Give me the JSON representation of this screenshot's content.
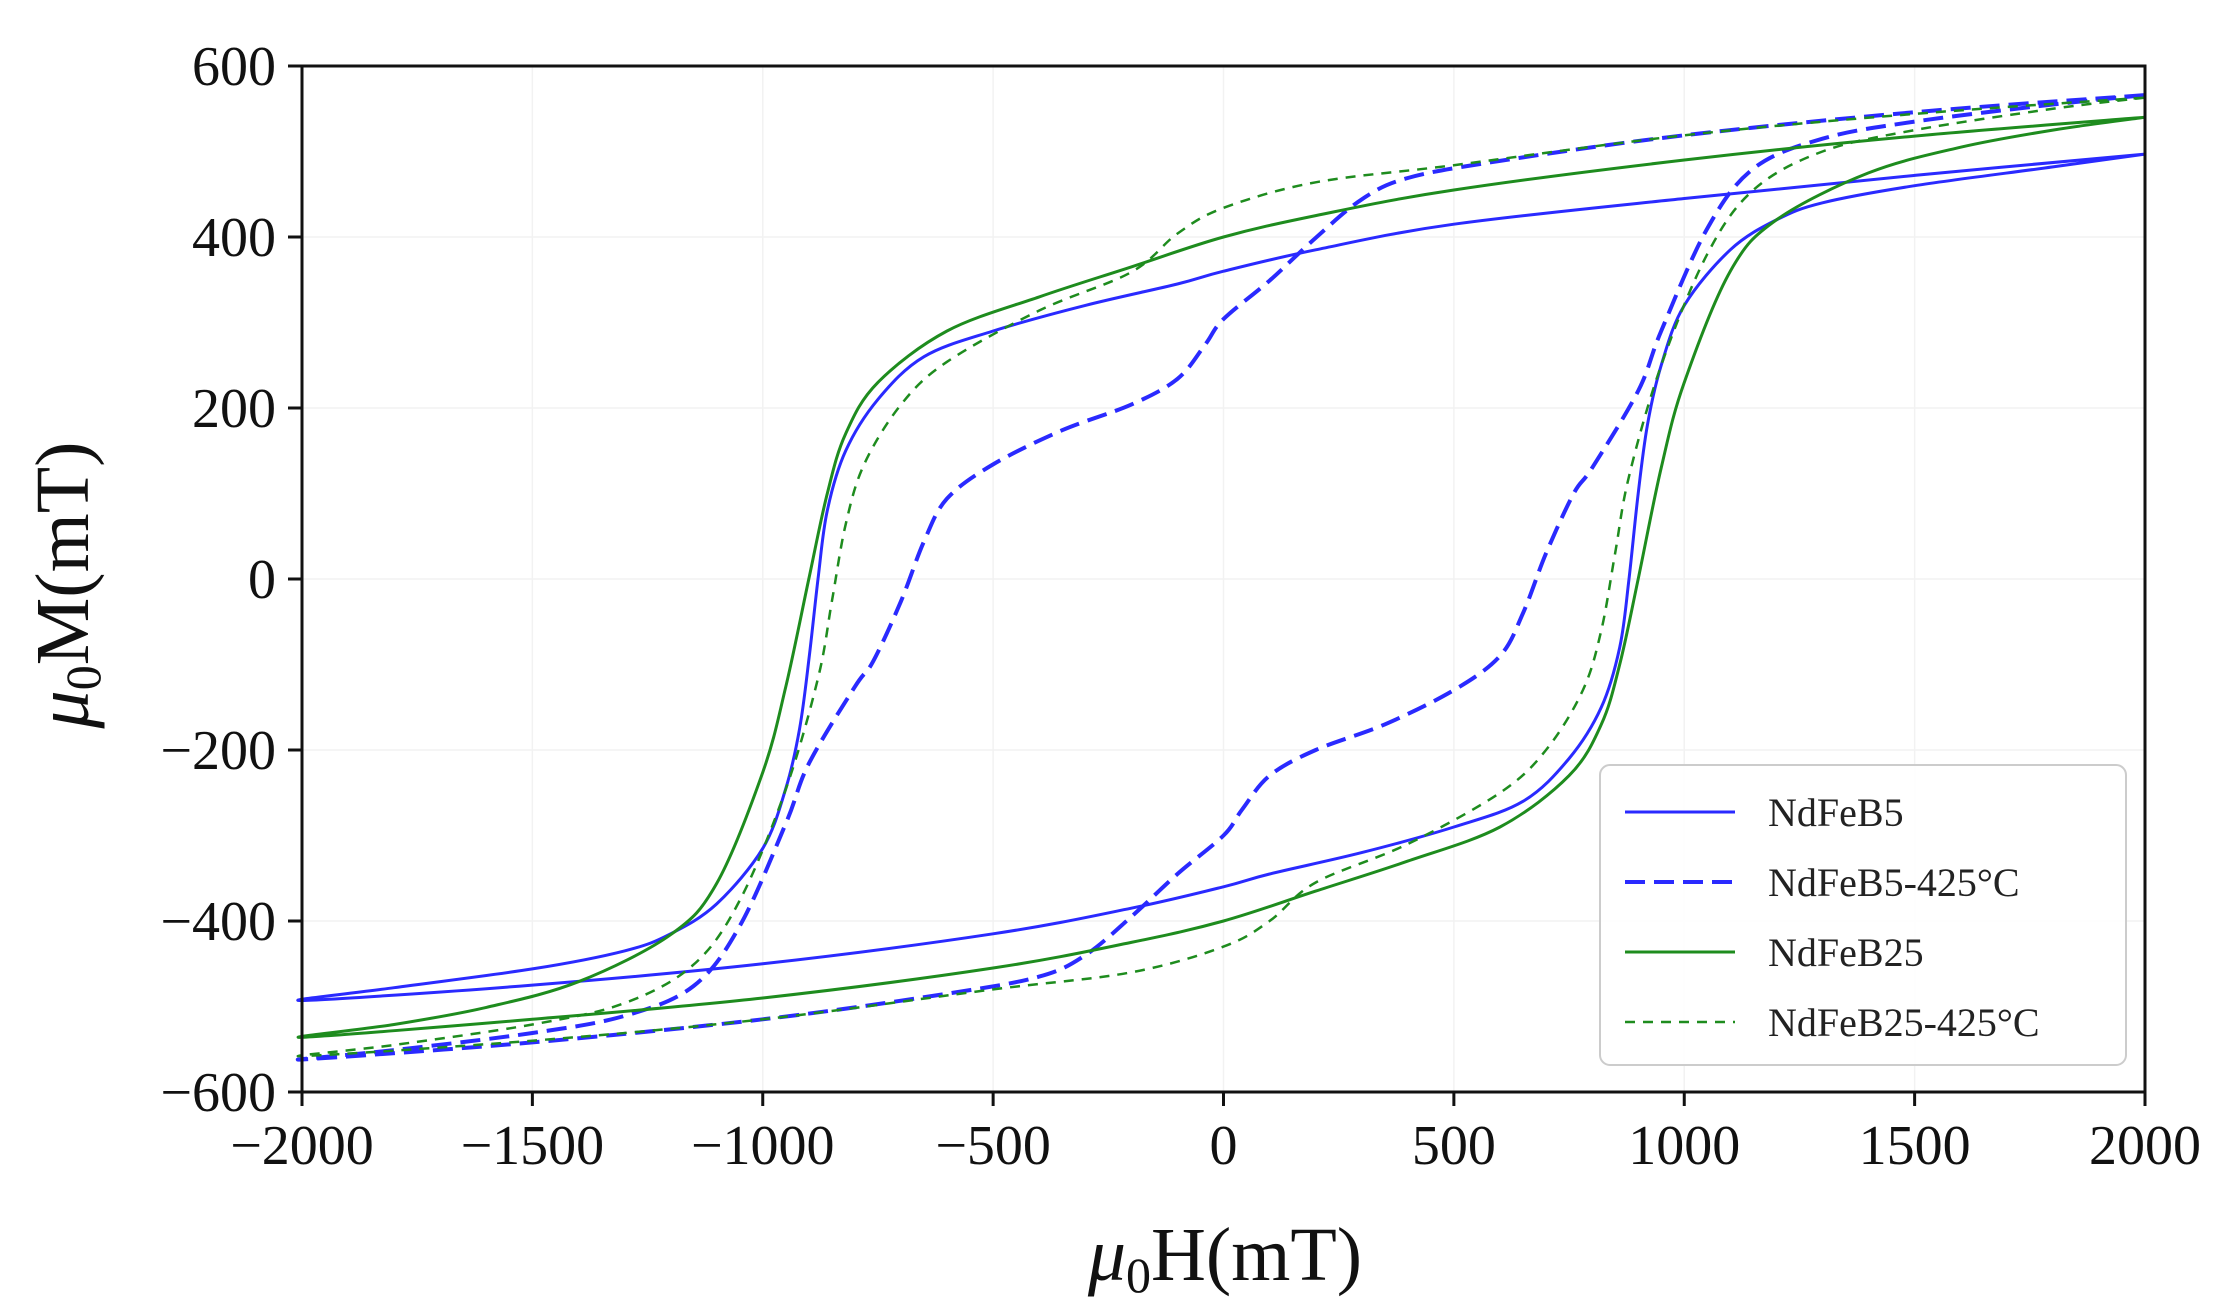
{
  "chart_data": {
    "type": "line",
    "title": "",
    "xlabel": "μ0H(mT)",
    "ylabel": "μ0M(mT)",
    "xlim": [
      -2000,
      2000
    ],
    "ylim": [
      -600,
      600
    ],
    "xticks": [
      -2000,
      -1500,
      -1000,
      -500,
      0,
      500,
      1000,
      1500,
      2000
    ],
    "yticks": [
      -600,
      -400,
      -200,
      0,
      200,
      400,
      600
    ],
    "xtick_labels": [
      "−2000",
      "−1500",
      "−1000",
      "−500",
      "0",
      "500",
      "1000",
      "1500",
      "2000"
    ],
    "ytick_labels": [
      "−600",
      "−400",
      "−200",
      "0",
      "200",
      "400",
      "600"
    ],
    "grid": true,
    "legend_position": "lower-right",
    "series": [
      {
        "name": "NdFeB5",
        "color": "#2a2aff",
        "style": "solid",
        "points": [
          [
            2000,
            497
          ],
          [
            1800,
            482
          ],
          [
            1500,
            460
          ],
          [
            1300,
            440
          ],
          [
            1200,
            420
          ],
          [
            1100,
            385
          ],
          [
            1000,
            320
          ],
          [
            950,
            250
          ],
          [
            920,
            180
          ],
          [
            900,
            100
          ],
          [
            880,
            0
          ],
          [
            860,
            -80
          ],
          [
            820,
            -150
          ],
          [
            750,
            -210
          ],
          [
            650,
            -260
          ],
          [
            500,
            -290
          ],
          [
            300,
            -320
          ],
          [
            100,
            -345
          ],
          [
            0,
            -360
          ],
          [
            -200,
            -385
          ],
          [
            -500,
            -415
          ],
          [
            -1000,
            -450
          ],
          [
            -1500,
            -475
          ],
          [
            -2000,
            -493
          ],
          [
            -1800,
            -478
          ],
          [
            -1500,
            -456
          ],
          [
            -1300,
            -435
          ],
          [
            -1200,
            -415
          ],
          [
            -1100,
            -380
          ],
          [
            -1000,
            -315
          ],
          [
            -950,
            -245
          ],
          [
            -920,
            -175
          ],
          [
            -900,
            -95
          ],
          [
            -880,
            0
          ],
          [
            -860,
            80
          ],
          [
            -820,
            150
          ],
          [
            -750,
            210
          ],
          [
            -650,
            260
          ],
          [
            -500,
            290
          ],
          [
            -300,
            320
          ],
          [
            -100,
            345
          ],
          [
            0,
            360
          ],
          [
            200,
            385
          ],
          [
            500,
            415
          ],
          [
            1000,
            445
          ],
          [
            1500,
            472
          ],
          [
            2000,
            497
          ]
        ]
      },
      {
        "name": "NdFeB5-425°C",
        "color": "#2a2aff",
        "style": "dashed",
        "points": [
          [
            2000,
            566
          ],
          [
            1800,
            555
          ],
          [
            1500,
            535
          ],
          [
            1300,
            515
          ],
          [
            1150,
            480
          ],
          [
            1050,
            410
          ],
          [
            950,
            290
          ],
          [
            900,
            220
          ],
          [
            800,
            130
          ],
          [
            760,
            100
          ],
          [
            700,
            30
          ],
          [
            650,
            -40
          ],
          [
            600,
            -90
          ],
          [
            500,
            -130
          ],
          [
            350,
            -170
          ],
          [
            200,
            -200
          ],
          [
            100,
            -230
          ],
          [
            40,
            -270
          ],
          [
            0,
            -300
          ],
          [
            -100,
            -345
          ],
          [
            -200,
            -395
          ],
          [
            -300,
            -440
          ],
          [
            -400,
            -465
          ],
          [
            -600,
            -485
          ],
          [
            -1000,
            -515
          ],
          [
            -1500,
            -542
          ],
          [
            -2000,
            -562
          ],
          [
            -1800,
            -551
          ],
          [
            -1500,
            -531
          ],
          [
            -1300,
            -511
          ],
          [
            -1150,
            -476
          ],
          [
            -1050,
            -406
          ],
          [
            -950,
            -286
          ],
          [
            -900,
            -216
          ],
          [
            -800,
            -126
          ],
          [
            -760,
            -96
          ],
          [
            -700,
            -26
          ],
          [
            -650,
            44
          ],
          [
            -600,
            94
          ],
          [
            -500,
            134
          ],
          [
            -350,
            174
          ],
          [
            -200,
            204
          ],
          [
            -100,
            234
          ],
          [
            -40,
            274
          ],
          [
            0,
            304
          ],
          [
            100,
            349
          ],
          [
            200,
            399
          ],
          [
            300,
            444
          ],
          [
            400,
            469
          ],
          [
            600,
            489
          ],
          [
            1000,
            519
          ],
          [
            1500,
            546
          ],
          [
            2000,
            566
          ]
        ]
      },
      {
        "name": "NdFeB25",
        "color": "#1e8c1e",
        "style": "solid",
        "points": [
          [
            2000,
            540
          ],
          [
            1800,
            525
          ],
          [
            1600,
            505
          ],
          [
            1400,
            475
          ],
          [
            1200,
            420
          ],
          [
            1100,
            360
          ],
          [
            1000,
            230
          ],
          [
            950,
            130
          ],
          [
            900,
            0
          ],
          [
            860,
            -100
          ],
          [
            820,
            -170
          ],
          [
            750,
            -230
          ],
          [
            600,
            -290
          ],
          [
            400,
            -330
          ],
          [
            200,
            -365
          ],
          [
            0,
            -400
          ],
          [
            -200,
            -425
          ],
          [
            -500,
            -455
          ],
          [
            -1000,
            -490
          ],
          [
            -1500,
            -515
          ],
          [
            -2000,
            -536
          ],
          [
            -1800,
            -521
          ],
          [
            -1600,
            -501
          ],
          [
            -1400,
            -471
          ],
          [
            -1200,
            -416
          ],
          [
            -1100,
            -356
          ],
          [
            -1000,
            -226
          ],
          [
            -950,
            -126
          ],
          [
            -900,
            0
          ],
          [
            -860,
            100
          ],
          [
            -820,
            170
          ],
          [
            -750,
            230
          ],
          [
            -600,
            290
          ],
          [
            -400,
            330
          ],
          [
            -200,
            365
          ],
          [
            0,
            400
          ],
          [
            200,
            425
          ],
          [
            500,
            455
          ],
          [
            1000,
            490
          ],
          [
            1500,
            518
          ],
          [
            2000,
            540
          ]
        ]
      },
      {
        "name": "NdFeB25-425°C",
        "color": "#1e8c1e",
        "style": "dotted",
        "points": [
          [
            2000,
            563
          ],
          [
            1800,
            550
          ],
          [
            1500,
            525
          ],
          [
            1300,
            500
          ],
          [
            1150,
            455
          ],
          [
            1050,
            380
          ],
          [
            950,
            250
          ],
          [
            880,
            120
          ],
          [
            850,
            30
          ],
          [
            820,
            -60
          ],
          [
            780,
            -130
          ],
          [
            700,
            -200
          ],
          [
            600,
            -250
          ],
          [
            400,
            -310
          ],
          [
            200,
            -355
          ],
          [
            100,
            -400
          ],
          [
            0,
            -430
          ],
          [
            -200,
            -460
          ],
          [
            -500,
            -480
          ],
          [
            -1000,
            -515
          ],
          [
            -1500,
            -540
          ],
          [
            -2000,
            -558
          ],
          [
            -1800,
            -545
          ],
          [
            -1500,
            -521
          ],
          [
            -1300,
            -496
          ],
          [
            -1150,
            -451
          ],
          [
            -1050,
            -376
          ],
          [
            -950,
            -246
          ],
          [
            -880,
            -116
          ],
          [
            -850,
            -26
          ],
          [
            -820,
            64
          ],
          [
            -780,
            134
          ],
          [
            -700,
            204
          ],
          [
            -600,
            254
          ],
          [
            -400,
            314
          ],
          [
            -200,
            359
          ],
          [
            -100,
            404
          ],
          [
            0,
            434
          ],
          [
            200,
            464
          ],
          [
            500,
            484
          ],
          [
            1000,
            519
          ],
          [
            1500,
            544
          ],
          [
            2000,
            563
          ]
        ]
      }
    ]
  }
}
